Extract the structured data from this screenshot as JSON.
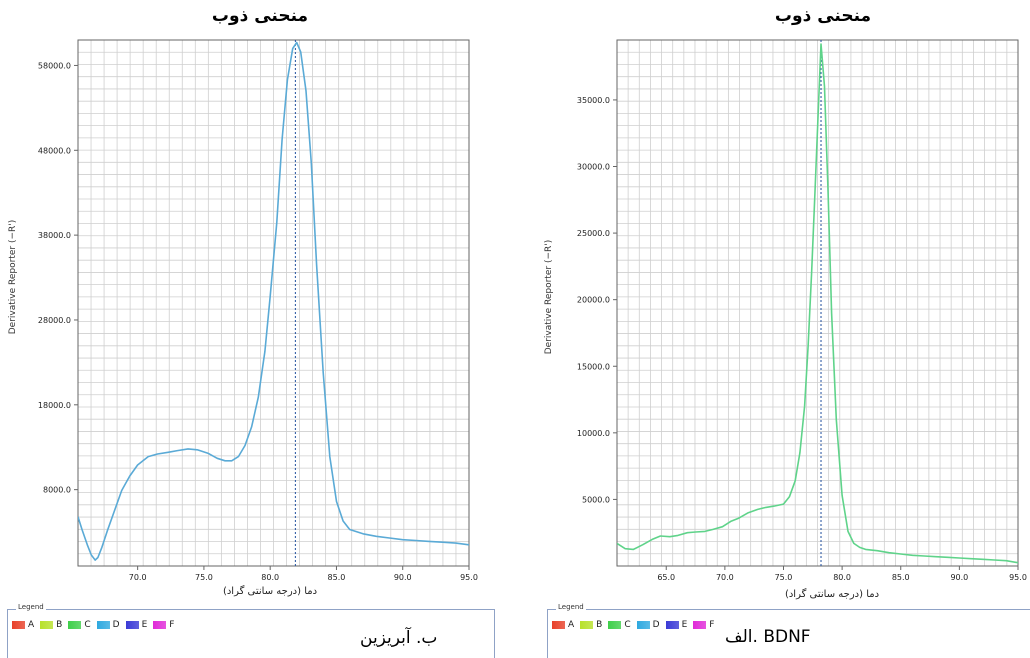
{
  "chart_data": [
    {
      "type": "line",
      "title": "منحنی ذوب",
      "xlabel": "دما (درجه سانتی گراد)",
      "ylabel": "Derivative Reporter (−R')",
      "xlim": [
        65.5,
        95.0
      ],
      "ylim": [
        -1000,
        61000
      ],
      "x_ticks": [
        "70.0",
        "75.0",
        "80.0",
        "85.0",
        "90.0",
        "95.0"
      ],
      "y_ticks": [
        "8000.0",
        "18000.0",
        "28000.0",
        "38000.0",
        "48000.0",
        "58000.0"
      ],
      "x_tick_values": [
        70,
        75,
        80,
        85,
        90,
        95
      ],
      "y_tick_values": [
        8000,
        18000,
        28000,
        38000,
        48000,
        58000
      ],
      "grid": true,
      "peak_marker_x": 81.9,
      "series": [
        {
          "color": "#5aaad6",
          "x": [
            65.5,
            65.8,
            66.2,
            66.5,
            66.8,
            67.0,
            67.3,
            67.7,
            68.2,
            68.8,
            69.4,
            70.0,
            70.8,
            71.5,
            72.3,
            73.0,
            73.8,
            74.5,
            75.3,
            76.0,
            76.6,
            77.1,
            77.6,
            78.1,
            78.6,
            79.1,
            79.6,
            80.0,
            80.5,
            80.9,
            81.3,
            81.7,
            82.0,
            82.3,
            82.7,
            83.1,
            83.5,
            84.0,
            84.5,
            85.0,
            85.5,
            86.0,
            87.0,
            88.0,
            89.0,
            90.0,
            91.0,
            92.0,
            93.0,
            94.0,
            95.0
          ],
          "y": [
            4800,
            3300,
            1500,
            300,
            -300,
            0,
            1200,
            3100,
            5300,
            7900,
            9600,
            10900,
            11900,
            12200,
            12400,
            12600,
            12800,
            12700,
            12300,
            11700,
            11400,
            11400,
            11900,
            13200,
            15400,
            18900,
            24300,
            30800,
            39500,
            49300,
            56300,
            60000,
            60700,
            59600,
            55000,
            46500,
            34500,
            21800,
            11900,
            6600,
            4300,
            3300,
            2800,
            2500,
            2300,
            2100,
            2000,
            1900,
            1800,
            1700,
            1500
          ]
        }
      ],
      "legend": [
        {
          "label": "A",
          "color": "#e8412a"
        },
        {
          "label": "B",
          "color": "#b7e12a"
        },
        {
          "label": "C",
          "color": "#3fcf4a"
        },
        {
          "label": "D",
          "color": "#2fa9e0"
        },
        {
          "label": "E",
          "color": "#3a3ad6"
        },
        {
          "label": "F",
          "color": "#e02ad8"
        }
      ]
    },
    {
      "type": "line",
      "title": "منحنی ذوب",
      "xlabel": "دما (درجه سانتی گراد)",
      "ylabel": "Derivative Reporter (−R')",
      "xlim": [
        60.8,
        95.0
      ],
      "ylim": [
        0,
        39500
      ],
      "x_ticks": [
        "65.0",
        "70.0",
        "75.0",
        "80.0",
        "85.0",
        "90.0",
        "95.0"
      ],
      "y_ticks": [
        "5000.0",
        "10000.0",
        "15000.0",
        "20000.0",
        "25000.0",
        "30000.0",
        "35000.0"
      ],
      "x_tick_values": [
        65,
        70,
        75,
        80,
        85,
        90,
        95
      ],
      "y_tick_values": [
        5000,
        10000,
        15000,
        20000,
        25000,
        30000,
        35000
      ],
      "grid": true,
      "peak_marker_x": 78.2,
      "series": [
        {
          "color": "#5fd38a",
          "x": [
            60.8,
            61.5,
            62.2,
            63.0,
            63.8,
            64.5,
            65.3,
            66.0,
            66.8,
            67.5,
            68.3,
            69.0,
            69.8,
            70.5,
            71.2,
            72.0,
            72.8,
            73.5,
            74.2,
            75.0,
            75.5,
            76.0,
            76.4,
            76.8,
            77.1,
            77.4,
            77.7,
            78.0,
            78.2,
            78.5,
            78.8,
            79.1,
            79.5,
            80.0,
            80.5,
            81.0,
            81.5,
            82.0,
            83.0,
            84.0,
            85.0,
            86.0,
            87.0,
            88.0,
            89.0,
            90.0,
            91.0,
            92.0,
            93.0,
            94.0,
            95.0
          ],
          "y": [
            1700,
            1300,
            1250,
            1600,
            2000,
            2250,
            2200,
            2300,
            2500,
            2550,
            2600,
            2750,
            2950,
            3350,
            3600,
            4000,
            4250,
            4400,
            4500,
            4650,
            5200,
            6400,
            8500,
            12000,
            16500,
            22000,
            28500,
            35000,
            39200,
            36000,
            28000,
            19000,
            11000,
            5300,
            2600,
            1700,
            1400,
            1250,
            1150,
            1000,
            900,
            800,
            750,
            700,
            650,
            600,
            550,
            500,
            450,
            400,
            250
          ]
        }
      ],
      "legend": [
        {
          "label": "A",
          "color": "#e8412a"
        },
        {
          "label": "B",
          "color": "#b7e12a"
        },
        {
          "label": "C",
          "color": "#3fcf4a"
        },
        {
          "label": "D",
          "color": "#2fa9e0"
        },
        {
          "label": "E",
          "color": "#3a3ad6"
        },
        {
          "label": "F",
          "color": "#e02ad8"
        }
      ]
    }
  ],
  "panels": {
    "left": {
      "title": "منحنی ذوب",
      "ylabel": "Derivative Reporter (−R')",
      "xlabel": "دما (درجه سانتی گراد)",
      "legend_title": "Legend",
      "caption": "ب. آبریزین"
    },
    "right": {
      "title": "منحنی ذوب",
      "ylabel": "Derivative Reporter (−R')",
      "xlabel": "دما (درجه سانتی گراد)",
      "legend_title": "Legend",
      "caption": "الف. BDNF"
    }
  },
  "colors": {
    "grid": "#cfcfcf",
    "axis": "#666666",
    "marker": "#1f4f9e"
  }
}
